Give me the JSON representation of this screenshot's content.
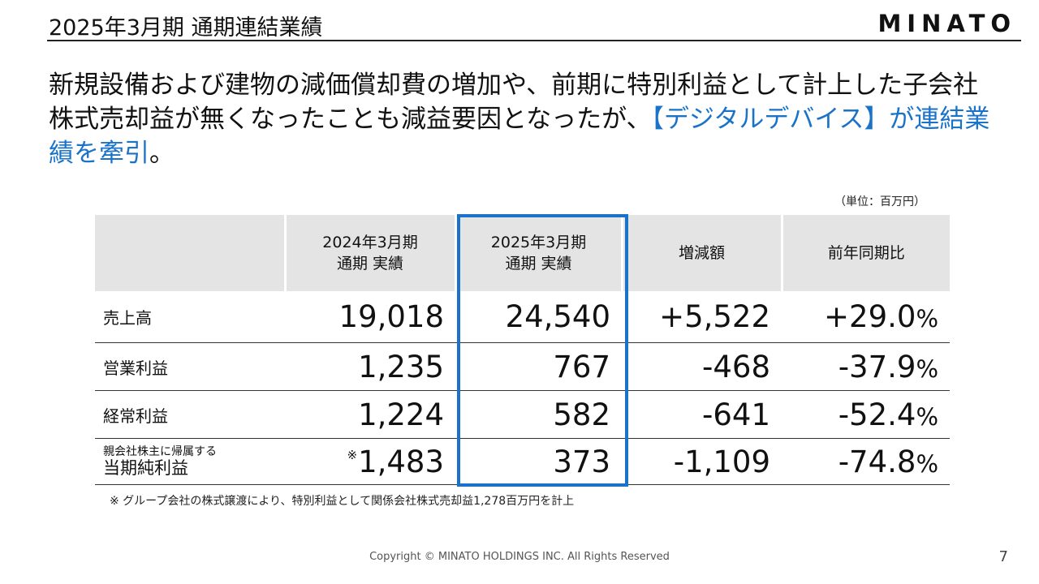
{
  "slide": {
    "title": "2025年3月期 通期連結業績",
    "logo": "MINATO",
    "lead_part1": "新規設備および建物の減価償却費の増加や、前期に特別利益として計上した子会社株式売却益が無くなったことも減益要因となったが、",
    "lead_highlight": "【デジタルデバイス】が連結業績を牽引",
    "lead_end": "。",
    "unit_note": "（単位：百万円）",
    "footnote": "※ グループ会社の株式譲渡により、特別利益として関係会社株式売却益1,278百万円を計上",
    "copyright": "Copyright © MINATO HOLDINGS INC. All Rights Reserved",
    "page_number": "7",
    "accent_color": "#1a73c8"
  },
  "table": {
    "headers": {
      "prev_line1": "2024年3月期",
      "prev_line2": "通期 実績",
      "curr_line1": "2025年3月期",
      "curr_line2": "通期 実績",
      "change": "増減額",
      "ratio": "前年同期比"
    },
    "rows": [
      {
        "label": "売上高",
        "prev": "19,018",
        "curr": "24,540",
        "change": "+5,522",
        "ratio": "+29.0",
        "pct": "%"
      },
      {
        "label": "営業利益",
        "prev": "1,235",
        "curr": "767",
        "change": "-468",
        "ratio": "-37.9",
        "pct": "%"
      },
      {
        "label": "経常利益",
        "prev": "1,224",
        "curr": "582",
        "change": "-641",
        "ratio": "-52.4",
        "pct": "%"
      },
      {
        "label_small": "親会社株主に帰属する",
        "label": "当期純利益",
        "mark": "※",
        "prev": "1,483",
        "curr": "373",
        "change": "-1,109",
        "ratio": "-74.8",
        "pct": "%"
      }
    ]
  }
}
